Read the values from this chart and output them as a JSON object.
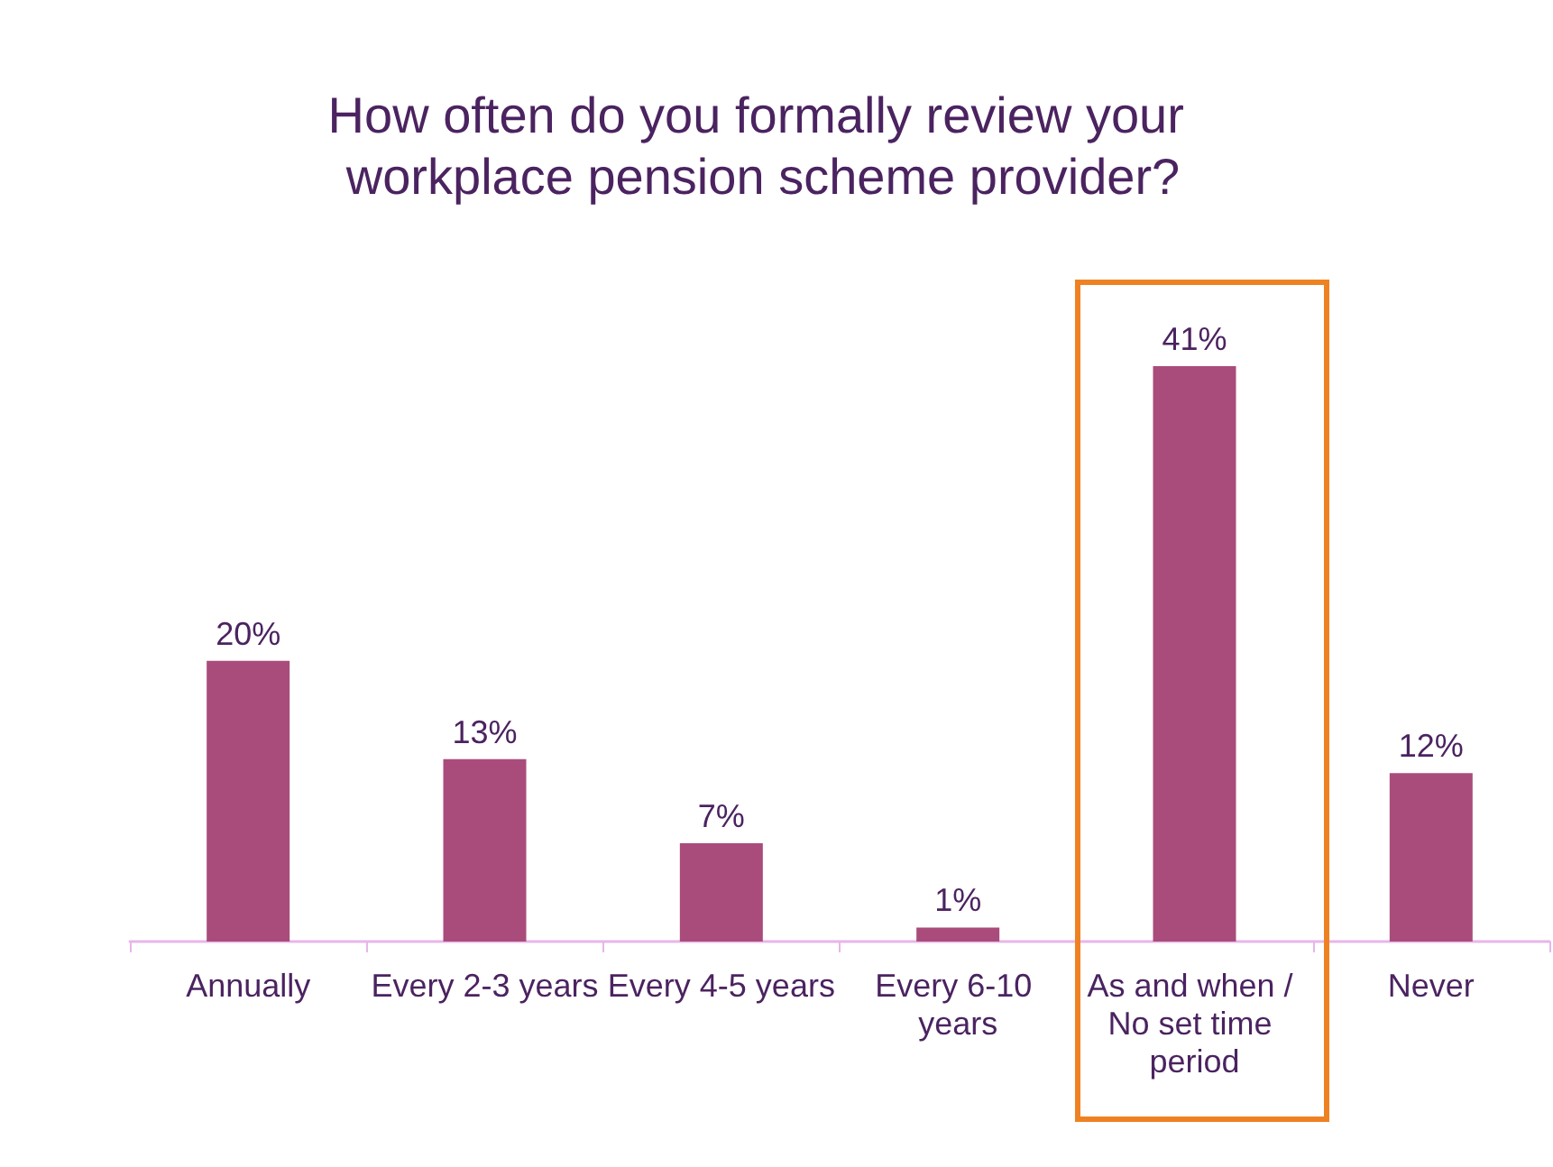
{
  "chart_data": {
    "type": "bar",
    "title": "How often do you formally review your workplace pension scheme provider?",
    "categories": [
      "Annually",
      "Every 2-3 years",
      "Every 4-5 years",
      "Every 6-10 years",
      "As and when / No set time period",
      "Never"
    ],
    "values": [
      20,
      13,
      7,
      1,
      41,
      12
    ],
    "value_labels": [
      "20%",
      "13%",
      "7%",
      "1%",
      "41%",
      "12%"
    ],
    "color": "#a94c7b"
  }
}
